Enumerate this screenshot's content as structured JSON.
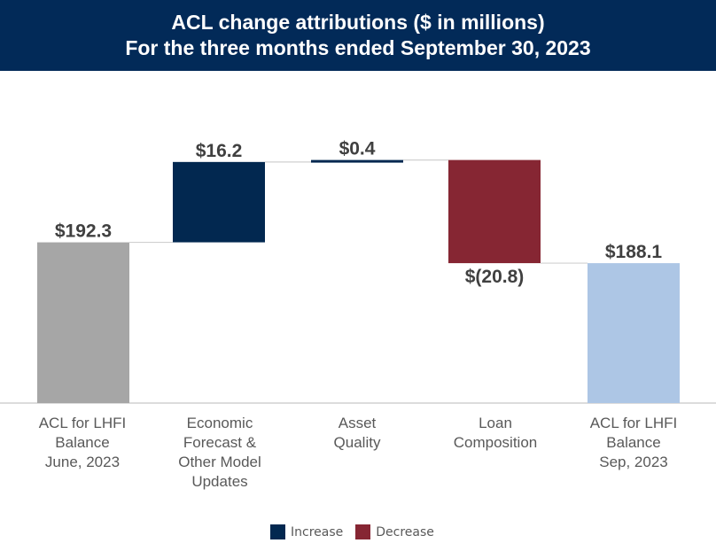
{
  "header": {
    "title": "ACL change attributions ($ in millions)",
    "subtitle": "For the three months ended September 30, 2023"
  },
  "chart_data": {
    "type": "waterfall",
    "title": "ACL change attributions ($ in millions)",
    "subtitle": "For the three months ended September 30, 2023",
    "categories": [
      "ACL for LHFI\nBalance\nJune, 2023",
      "Economic\nForecast &\nOther Model\nUpdates",
      "Asset\nQuality",
      "Loan\nComposition",
      "ACL for LHFI\nBalance\nSep, 2023"
    ],
    "values": [
      192.3,
      16.2,
      0.4,
      -20.8,
      188.1
    ],
    "kinds": [
      "total",
      "increase",
      "increase",
      "decrease",
      "total"
    ],
    "labels": [
      "$192.3",
      "$16.2",
      "$0.4",
      "$(20.8)",
      "$188.1"
    ],
    "ylim": [
      160,
      215
    ],
    "grid": false,
    "legend_position": "bottom",
    "legend": [
      {
        "name": "Increase",
        "color": "#022850"
      },
      {
        "name": "Decrease",
        "color": "#862633"
      }
    ],
    "colors": {
      "start": "#a6a6a6",
      "end": "#adc6e5",
      "increase": "#022850",
      "decrease": "#862633",
      "connector": "#d0d0d0"
    }
  }
}
